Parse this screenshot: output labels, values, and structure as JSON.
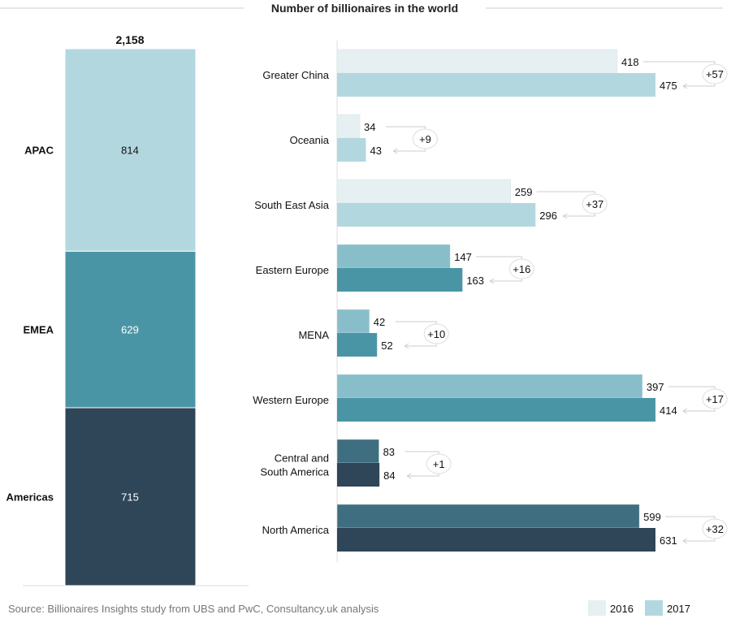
{
  "chart_data": [
    {
      "type": "bar",
      "stacked": true,
      "title": "Number of billionaires in the world",
      "total_label": "2,158",
      "categories": [
        "APAC",
        "EMEA",
        "Americas"
      ],
      "values": [
        814,
        629,
        715
      ],
      "value_labels": [
        "814",
        "629",
        "715"
      ],
      "colors": [
        "#b3d7df",
        "#4a95a5",
        "#2f4558"
      ],
      "label_colors": [
        "#111111",
        "#ffffff",
        "#ffffff"
      ]
    },
    {
      "type": "bar",
      "orientation": "horizontal",
      "note": "each region group scaled to its own maximum",
      "categories": [
        "Greater China",
        "Oceania",
        "South East Asia",
        "Eastern Europe",
        "MENA",
        "Western Europe",
        "Central and South America",
        "North America"
      ],
      "category_lines": [
        [
          "Greater China"
        ],
        [
          "Oceania"
        ],
        [
          "South East Asia"
        ],
        [
          "Eastern Europe"
        ],
        [
          "MENA"
        ],
        [
          "Western Europe"
        ],
        [
          "Central and",
          "South America"
        ],
        [
          "North America"
        ]
      ],
      "groups": [
        "APAC",
        "APAC",
        "APAC",
        "EMEA",
        "EMEA",
        "EMEA",
        "Americas",
        "Americas"
      ],
      "series": [
        {
          "name": "2016",
          "values": [
            418,
            34,
            259,
            147,
            42,
            397,
            83,
            599
          ]
        },
        {
          "name": "2017",
          "values": [
            475,
            43,
            296,
            163,
            52,
            414,
            84,
            631
          ]
        }
      ],
      "change_labels": [
        "+57",
        "+9",
        "+37",
        "+16",
        "+10",
        "+17",
        "+1",
        "+32"
      ],
      "group_colors": {
        "APAC": [
          "#e6f0f2",
          "#b3d7df"
        ],
        "EMEA": [
          "#87bec9",
          "#4a95a5"
        ],
        "Americas": [
          "#3f6e80",
          "#2f4558"
        ]
      },
      "legend": {
        "position": "bottom-right",
        "items": [
          {
            "label": "2016",
            "color": "#e6f0f2"
          },
          {
            "label": "2017",
            "color": "#b3d7df"
          }
        ]
      }
    }
  ],
  "source": "Source: Billionaires Insights study from UBS and PwC, Consultancy.uk analysis"
}
